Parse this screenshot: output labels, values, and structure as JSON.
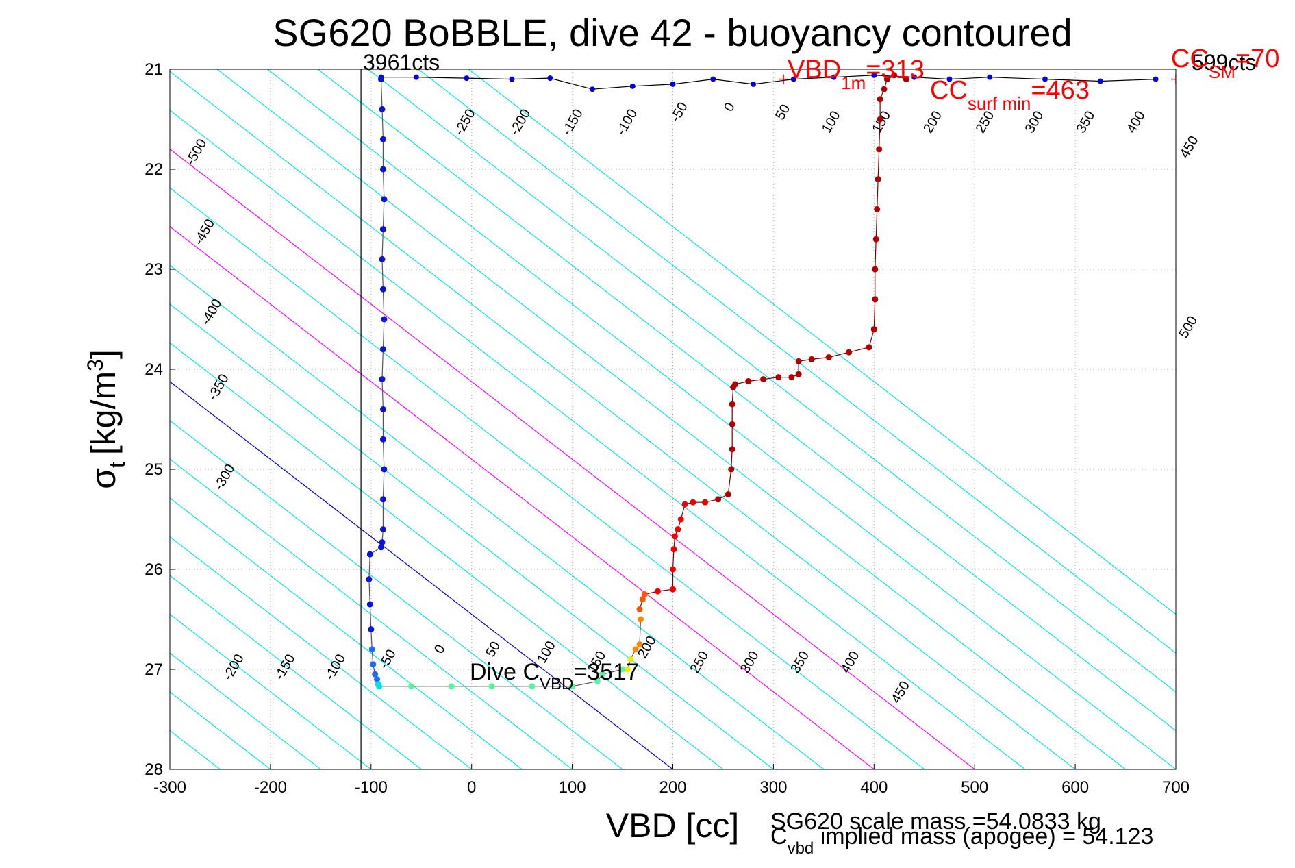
{
  "chart_data": {
    "type": "scatter",
    "title": "SG620 BoBBLE, dive 42 - buoyancy contoured",
    "xlabel": "VBD [cc]",
    "ylabel": {
      "main": "σ",
      "sub": "t",
      "unit": "[kg/m",
      "sup": "3",
      "close": "]"
    },
    "xlim": [
      -300,
      700
    ],
    "ylim": [
      28,
      21
    ],
    "y_reversed": true,
    "grid": true,
    "xticks": [
      -300,
      -200,
      -100,
      0,
      100,
      200,
      300,
      400,
      500,
      600,
      700
    ],
    "yticks": [
      21,
      22,
      23,
      24,
      25,
      26,
      27,
      28
    ],
    "colors": {
      "contour": "#00e5ee",
      "zero_contour": "#0000cc",
      "magenta_contour": "#ff00ff",
      "red_text": "#ff0000",
      "dive_trace": "#0000dd",
      "climb_trace": "#c00000"
    },
    "contour_slope": 12.9,
    "contour_offsets": [
      -650,
      -600,
      -550,
      -500,
      -450,
      -400,
      -350,
      -300,
      -250,
      -200,
      -150,
      -100,
      -50,
      0,
      50,
      100,
      150,
      200,
      250,
      300,
      350,
      400,
      450,
      500,
      550,
      600,
      650,
      700,
      750,
      800,
      850,
      900
    ],
    "contour_labels_top": [
      {
        "text": "-500",
        "x": -270,
        "y": 21.85
      },
      {
        "text": "-450",
        "x": -262,
        "y": 22.65
      },
      {
        "text": "-400",
        "x": -255,
        "y": 23.45
      },
      {
        "text": "-350",
        "x": -248,
        "y": 24.2
      },
      {
        "text": "-300",
        "x": -242,
        "y": 25.1
      },
      {
        "text": "-250",
        "x": -3,
        "y": 21.55
      },
      {
        "text": "-200",
        "x": 52,
        "y": 21.55
      },
      {
        "text": "-150",
        "x": 104,
        "y": 21.55
      },
      {
        "text": "-100",
        "x": 158,
        "y": 21.55
      },
      {
        "text": "-50",
        "x": 210,
        "y": 21.45
      },
      {
        "text": "0",
        "x": 260,
        "y": 21.4
      },
      {
        "text": "50",
        "x": 313,
        "y": 21.45
      },
      {
        "text": "100",
        "x": 361,
        "y": 21.55
      },
      {
        "text": "150",
        "x": 411,
        "y": 21.55
      },
      {
        "text": "200",
        "x": 462,
        "y": 21.55
      },
      {
        "text": "250",
        "x": 514,
        "y": 21.55
      },
      {
        "text": "300",
        "x": 563,
        "y": 21.55
      },
      {
        "text": "350",
        "x": 614,
        "y": 21.55
      },
      {
        "text": "400",
        "x": 664,
        "y": 21.55
      },
      {
        "text": "450",
        "x": 717,
        "y": 21.8
      },
      {
        "text": "500",
        "x": 716,
        "y": 23.6
      }
    ],
    "contour_labels_bottom": [
      {
        "text": "-200",
        "x": -233,
        "y": 27.0
      },
      {
        "text": "-150",
        "x": -182,
        "y": 27.0
      },
      {
        "text": "-100",
        "x": -132,
        "y": 27.0
      },
      {
        "text": "-50",
        "x": -80,
        "y": 26.92
      },
      {
        "text": "0",
        "x": -28,
        "y": 26.82
      },
      {
        "text": "50",
        "x": 25,
        "y": 26.82
      },
      {
        "text": "100",
        "x": 78,
        "y": 26.85
      },
      {
        "text": "150",
        "x": 128,
        "y": 26.95
      },
      {
        "text": "200",
        "x": 178,
        "y": 26.8
      },
      {
        "text": "250",
        "x": 230,
        "y": 26.95
      },
      {
        "text": "300",
        "x": 280,
        "y": 26.95
      },
      {
        "text": "350",
        "x": 330,
        "y": 26.95
      },
      {
        "text": "400",
        "x": 380,
        "y": 26.95
      },
      {
        "text": "450",
        "x": 430,
        "y": 27.25
      }
    ],
    "min_vbd_line_x": -110,
    "max_vbd_marker_x": 700,
    "surface_trace": {
      "x": [
        -90,
        -55,
        -5,
        40,
        78,
        120,
        160,
        200,
        240,
        280,
        320,
        360,
        400,
        440,
        475,
        515,
        570,
        625,
        680
      ],
      "y": [
        21.08,
        21.08,
        21.09,
        21.1,
        21.09,
        21.2,
        21.17,
        21.15,
        21.1,
        21.15,
        21.1,
        21.08,
        21.06,
        21.08,
        21.1,
        21.08,
        21.1,
        21.12,
        21.1
      ]
    },
    "dive_trace": {
      "x": [
        -90,
        -89,
        -88,
        -88,
        -87,
        -88,
        -89,
        -88,
        -87,
        -88,
        -89,
        -88,
        -88,
        -87,
        -88,
        -88,
        -89,
        -90,
        -101,
        -102,
        -101,
        -100,
        -99,
        -98,
        -96,
        -94,
        -93,
        -92,
        -60,
        -20,
        20,
        60,
        100,
        125,
        130,
        150,
        155,
        158,
        163,
        167,
        168
      ],
      "y": [
        21.1,
        21.4,
        21.7,
        22.0,
        22.3,
        22.6,
        22.9,
        23.2,
        23.5,
        23.8,
        24.1,
        24.4,
        24.7,
        25.0,
        25.3,
        25.6,
        25.73,
        25.78,
        25.85,
        26.1,
        26.35,
        26.6,
        26.8,
        26.95,
        27.05,
        27.1,
        27.15,
        27.17,
        27.17,
        27.17,
        27.17,
        27.17,
        27.17,
        27.12,
        27.05,
        27.0,
        27.0,
        26.9,
        26.8,
        26.75,
        26.5
      ]
    },
    "climb_trace": {
      "x": [
        167,
        170,
        172,
        185,
        200,
        200,
        201,
        202,
        205,
        208,
        212,
        220,
        232,
        245,
        255,
        258,
        259,
        259,
        259,
        260,
        262,
        275,
        290,
        305,
        318,
        325,
        325,
        338,
        355,
        375,
        395,
        400,
        401,
        401,
        402,
        403,
        404,
        405,
        406,
        406,
        410,
        413,
        420,
        432
      ],
      "y": [
        26.4,
        26.3,
        26.25,
        26.22,
        26.2,
        26.0,
        25.8,
        25.67,
        25.6,
        25.5,
        25.35,
        25.33,
        25.33,
        25.3,
        25.25,
        25.0,
        24.8,
        24.55,
        24.35,
        24.18,
        24.15,
        24.12,
        24.1,
        24.08,
        24.08,
        24.05,
        23.92,
        23.9,
        23.88,
        23.83,
        23.78,
        23.6,
        23.3,
        23.0,
        22.7,
        22.4,
        22.1,
        21.8,
        21.5,
        21.3,
        21.2,
        21.1,
        21.06,
        21.1
      ]
    },
    "annotations": {
      "cts_top_left": "3961cts",
      "cts_top_right": "599cts",
      "vbd1m": {
        "main": "VBD",
        "sub": "1m",
        "rest": "=313"
      },
      "cc_surf_min": {
        "main": "CC",
        "sub": "surf min",
        "rest": "=463"
      },
      "cc_sm": {
        "main": "CC",
        "sub": "SM",
        "rest": "=70"
      },
      "dive_cvbd": {
        "main": "Dive C",
        "sub": "VBD",
        "rest": "=3517"
      },
      "scale_mass": "SG620 scale mass =54.0833 kg",
      "implied_mass": {
        "main": "C",
        "sub": "vbd",
        "rest": " implied mass (apogee) = 54.123"
      }
    }
  }
}
